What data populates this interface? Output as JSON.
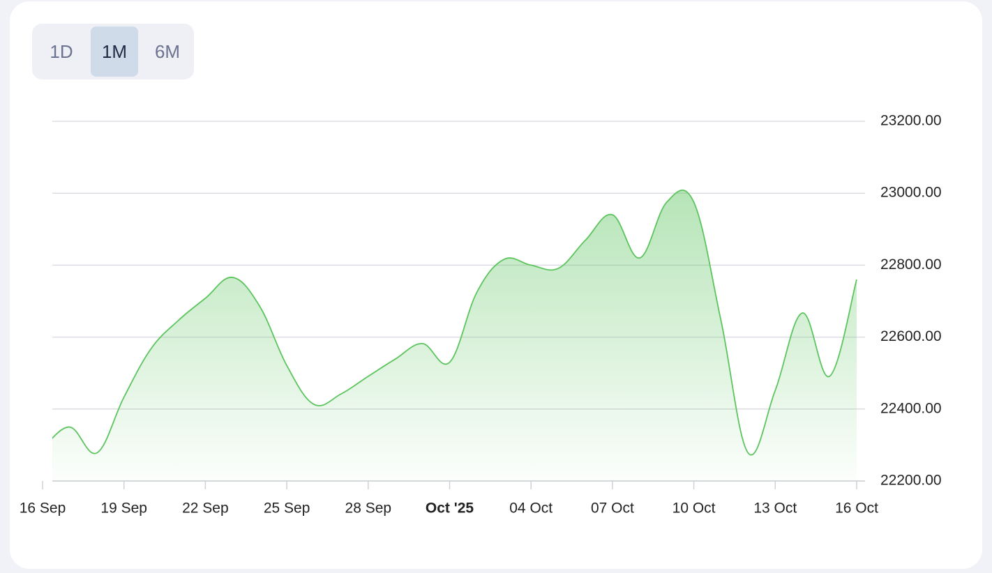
{
  "tabs": [
    "1D",
    "1M",
    "6M"
  ],
  "selected_tab": 1,
  "chart_data": {
    "type": "area",
    "color": "#5cc45e",
    "x": [
      "2025-09-16",
      "2025-09-17",
      "2025-09-18",
      "2025-09-19",
      "2025-09-20",
      "2025-09-21",
      "2025-09-22",
      "2025-09-23",
      "2025-09-24",
      "2025-09-25",
      "2025-09-26",
      "2025-09-27",
      "2025-09-28",
      "2025-09-29",
      "2025-09-30",
      "2025-10-01",
      "2025-10-02",
      "2025-10-03",
      "2025-10-04",
      "2025-10-05",
      "2025-10-06",
      "2025-10-07",
      "2025-10-08",
      "2025-10-09",
      "2025-10-10",
      "2025-10-11",
      "2025-10-12",
      "2025-10-13",
      "2025-10-14",
      "2025-10-15",
      "2025-10-16"
    ],
    "values": [
      22290,
      22350,
      22278,
      22433,
      22568,
      22646,
      22708,
      22766,
      22686,
      22521,
      22413,
      22442,
      22491,
      22539,
      22582,
      22530,
      22724,
      22816,
      22800,
      22791,
      22869,
      22940,
      22820,
      22975,
      22975,
      22646,
      22278,
      22452,
      22667,
      22491,
      22760
    ],
    "xlim": [
      "2025-09-16",
      "2025-10-16"
    ],
    "xticks": [
      {
        "value": "2025-09-16",
        "label": "16 Sep"
      },
      {
        "value": "2025-09-19",
        "label": "19 Sep"
      },
      {
        "value": "2025-09-22",
        "label": "22 Sep"
      },
      {
        "value": "2025-09-25",
        "label": "25 Sep"
      },
      {
        "value": "2025-09-28",
        "label": "28 Sep"
      },
      {
        "value": "2025-10-01",
        "label": "Oct '25"
      },
      {
        "value": "2025-10-04",
        "label": "04 Oct"
      },
      {
        "value": "2025-10-07",
        "label": "07 Oct"
      },
      {
        "value": "2025-10-10",
        "label": "10 Oct"
      },
      {
        "value": "2025-10-13",
        "label": "13 Oct"
      },
      {
        "value": "2025-10-16",
        "label": "16 Oct"
      }
    ],
    "ylim": [
      22200,
      23200
    ],
    "yticks": [
      {
        "value": 22200,
        "label": "22200.00"
      },
      {
        "value": 22400,
        "label": "22400.00"
      },
      {
        "value": 22600,
        "label": "22600.00"
      },
      {
        "value": 22800,
        "label": "22800.00"
      },
      {
        "value": 23000,
        "label": "23000.00"
      },
      {
        "value": 23200,
        "label": "23200.00"
      }
    ],
    "grid": true
  }
}
